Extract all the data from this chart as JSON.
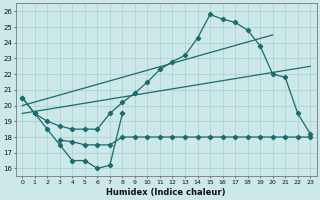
{
  "xlabel": "Humidex (Indice chaleur)",
  "bg_color": "#cce8e8",
  "line_color": "#1a6b6b",
  "grid_color": "#a8d0d0",
  "xlim": [
    -0.5,
    23.5
  ],
  "ylim": [
    15.5,
    26.5
  ],
  "xticks": [
    0,
    1,
    2,
    3,
    4,
    5,
    6,
    7,
    8,
    9,
    10,
    11,
    12,
    13,
    14,
    15,
    16,
    17,
    18,
    19,
    20,
    21,
    22,
    23
  ],
  "yticks": [
    16,
    17,
    18,
    19,
    20,
    21,
    22,
    23,
    24,
    25,
    26
  ],
  "curve_zigzag_x": [
    0,
    1,
    2,
    3,
    4,
    5,
    6,
    7,
    8
  ],
  "curve_zigzag_y": [
    20.5,
    19.5,
    18.5,
    17.5,
    16.5,
    16.5,
    16.0,
    16.2,
    19.5
  ],
  "curve_flat_x": [
    3,
    4,
    5,
    6,
    7,
    8,
    9,
    10,
    11,
    12,
    13,
    14,
    15,
    16,
    17,
    18,
    19,
    20,
    21,
    22,
    23
  ],
  "curve_flat_y": [
    17.8,
    17.7,
    17.5,
    17.5,
    17.5,
    18.0,
    18.0,
    18.0,
    18.0,
    18.0,
    18.0,
    18.0,
    18.0,
    18.0,
    18.0,
    18.0,
    18.0,
    18.0,
    18.0,
    18.0,
    18.0
  ],
  "curve_main_x": [
    0,
    1,
    2,
    3,
    4,
    5,
    6,
    7,
    8,
    9,
    10,
    11,
    12,
    13,
    14,
    15,
    16,
    17,
    18,
    19,
    20,
    21,
    22,
    23
  ],
  "curve_main_y": [
    20.5,
    19.5,
    19.0,
    18.7,
    18.5,
    18.5,
    18.5,
    19.5,
    20.2,
    20.8,
    21.5,
    22.3,
    22.8,
    23.2,
    24.3,
    25.8,
    25.5,
    25.3,
    24.8,
    23.8,
    22.0,
    21.8,
    19.5,
    18.2
  ],
  "trend1_x": [
    0,
    23
  ],
  "trend1_y": [
    19.5,
    22.5
  ],
  "trend2_x": [
    0,
    20
  ],
  "trend2_y": [
    20.0,
    24.5
  ]
}
